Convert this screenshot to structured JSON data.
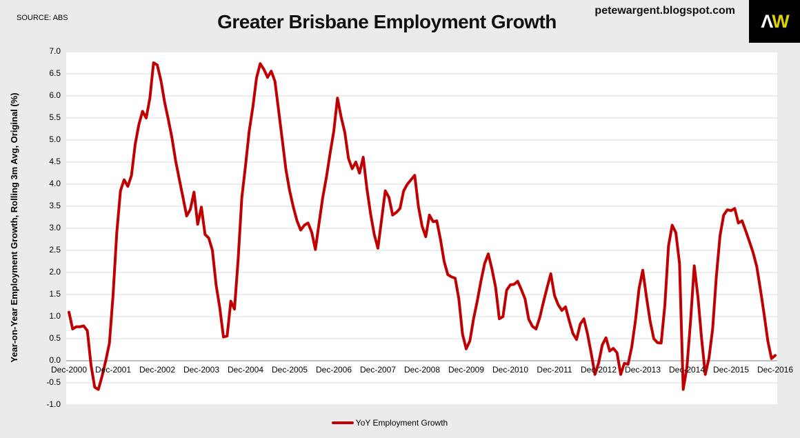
{
  "header": {
    "source_label": "SOURCE: ABS",
    "site_label": "petewargent.blogspot.com",
    "logo": {
      "letter_a": "Λ",
      "letter_w": "W"
    }
  },
  "chart_data": {
    "type": "line",
    "title": "Greater Brisbane Employment Growth",
    "ylabel": "Year-on-Year Employment Growth, Rolling 3m Avg, Original (%)",
    "xlabel": "",
    "frequency": "monthly",
    "x_start": "Dec-2000",
    "x_end": "Dec-2016",
    "ylim": [
      -1.0,
      7.0
    ],
    "grid": "horizontal",
    "legend_position": "bottom-center",
    "y_tick_labels": [
      "7.0",
      "6.5",
      "6.0",
      "5.5",
      "5.0",
      "4.5",
      "4.0",
      "3.5",
      "3.0",
      "2.5",
      "2.0",
      "1.5",
      "1.0",
      "0.5",
      "0.0",
      "-0.5",
      "-1.0"
    ],
    "x_tick_labels": [
      "Dec-2000",
      "Dec-2001",
      "Dec-2002",
      "Dec-2003",
      "Dec-2004",
      "Dec-2005",
      "Dec-2006",
      "Dec-2007",
      "Dec-2008",
      "Dec-2009",
      "Dec-2010",
      "Dec-2011",
      "Dec-2012",
      "Dec-2013",
      "Dec-2014",
      "Dec-2015",
      "Dec-2016"
    ],
    "series": [
      {
        "name": "YoY Employment Growth",
        "color": "#c00000",
        "values": [
          1.1,
          0.72,
          0.77,
          0.77,
          0.79,
          0.68,
          -0.1,
          -0.6,
          -0.65,
          -0.35,
          0.0,
          0.4,
          1.5,
          2.9,
          3.85,
          4.1,
          3.95,
          4.2,
          4.9,
          5.35,
          5.65,
          5.5,
          5.95,
          6.75,
          6.7,
          6.35,
          5.86,
          5.47,
          5.05,
          4.53,
          4.11,
          3.7,
          3.28,
          3.43,
          3.82,
          3.09,
          3.48,
          2.86,
          2.78,
          2.5,
          1.72,
          1.2,
          0.54,
          0.56,
          1.35,
          1.17,
          2.3,
          3.7,
          4.42,
          5.2,
          5.75,
          6.41,
          6.73,
          6.6,
          6.42,
          6.56,
          6.33,
          5.67,
          5.0,
          4.32,
          3.85,
          3.48,
          3.17,
          2.96,
          3.07,
          3.12,
          2.91,
          2.52,
          3.12,
          3.7,
          4.16,
          4.7,
          5.2,
          5.95,
          5.52,
          5.17,
          4.58,
          4.35,
          4.5,
          4.25,
          4.61,
          3.9,
          3.33,
          2.86,
          2.55,
          3.2,
          3.85,
          3.7,
          3.3,
          3.36,
          3.45,
          3.85,
          4.0,
          4.1,
          4.2,
          3.5,
          3.05,
          2.81,
          3.3,
          3.15,
          3.17,
          2.75,
          2.25,
          1.95,
          1.9,
          1.87,
          1.4,
          0.6,
          0.27,
          0.45,
          0.95,
          1.35,
          1.8,
          2.2,
          2.42,
          2.08,
          1.66,
          0.95,
          1.0,
          1.6,
          1.72,
          1.73,
          1.8,
          1.61,
          1.4,
          0.94,
          0.78,
          0.72,
          0.98,
          1.33,
          1.66,
          1.97,
          1.48,
          1.27,
          1.14,
          1.22,
          0.91,
          0.62,
          0.48,
          0.83,
          0.95,
          0.6,
          0.16,
          -0.31,
          -0.05,
          0.36,
          0.52,
          0.22,
          0.28,
          0.18,
          -0.31,
          -0.06,
          -0.08,
          0.31,
          0.9,
          1.64,
          2.05,
          1.45,
          0.9,
          0.5,
          0.41,
          0.4,
          1.25,
          2.6,
          3.07,
          2.9,
          2.2,
          -0.65,
          -0.15,
          0.9,
          2.15,
          1.45,
          0.5,
          -0.31,
          0.06,
          0.72,
          1.9,
          2.83,
          3.3,
          3.42,
          3.4,
          3.45,
          3.12,
          3.17,
          2.94,
          2.7,
          2.45,
          2.13,
          1.61,
          1.05,
          0.45,
          0.05,
          0.12
        ]
      }
    ]
  },
  "colors": {
    "background": "#ebebeb",
    "plot_background": "#ffffff",
    "gridline": "#d9d9d9",
    "zero_line": "#7f7f7f",
    "line": "#c00000",
    "logo_background": "#000000",
    "logo_a": "#ffffff",
    "logo_w": "#ddd104",
    "text": "#000000"
  }
}
